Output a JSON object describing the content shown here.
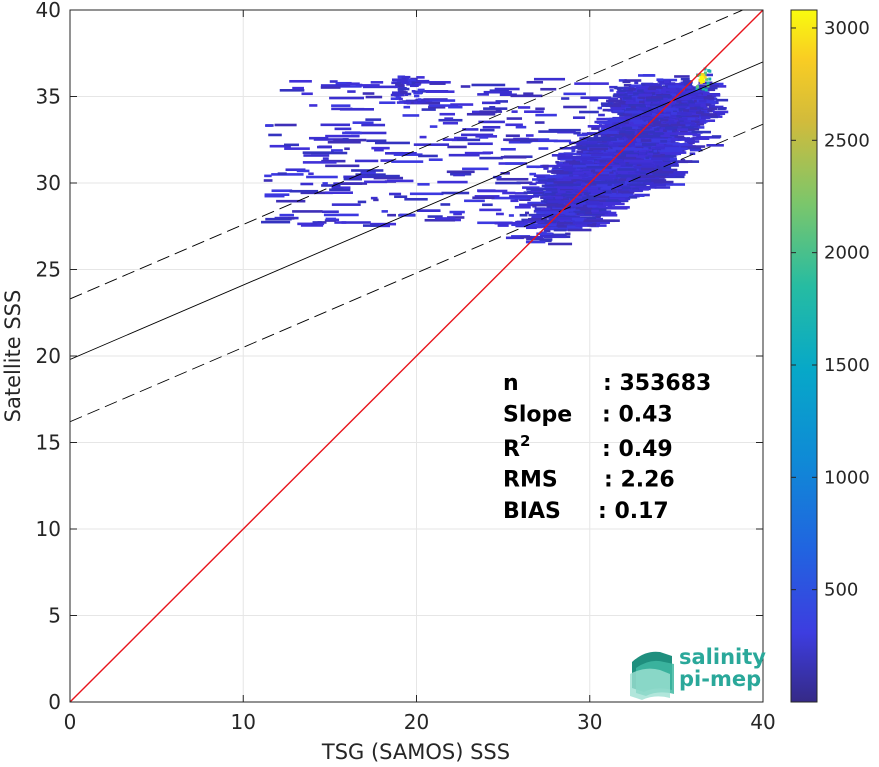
{
  "chart_data": {
    "type": "heatmap",
    "xlabel": "TSG (SAMOS) SSS",
    "ylabel": "Satellite SSS",
    "xlim": [
      0,
      40
    ],
    "ylim": [
      0,
      40
    ],
    "xticks": [
      0,
      10,
      20,
      30,
      40
    ],
    "yticks": [
      0,
      5,
      10,
      15,
      20,
      25,
      30,
      35,
      40
    ],
    "grid": true,
    "colorbar": {
      "range": [
        0,
        3080
      ],
      "ticks": [
        500,
        1000,
        1500,
        2000,
        2500,
        3000
      ],
      "colormap": "parula"
    },
    "density_region": {
      "x_range": [
        11,
        40
      ],
      "y_range": [
        25.5,
        36.8
      ],
      "peak": {
        "x": 36.4,
        "y": 36.0,
        "count": 3080
      }
    },
    "lines": {
      "identity": {
        "slope": 1,
        "intercept": 0,
        "color": "#e8141c"
      },
      "fit": {
        "slope": 0.43,
        "intercept": 19.8,
        "color": "#000000"
      },
      "fit_upper": {
        "slope": 0.43,
        "intercept": 23.3,
        "color": "#000000",
        "dashed": true
      },
      "fit_lower": {
        "slope": 0.43,
        "intercept": 16.2,
        "color": "#000000",
        "dashed": true
      }
    },
    "stats": [
      {
        "label": "n",
        "value": ": 353683"
      },
      {
        "label": "Slope",
        "value": ": 0.43"
      },
      {
        "label": "R",
        "sup": "2",
        "value": ": 0.49"
      },
      {
        "label": "RMS",
        "value": ": 2.26"
      },
      {
        "label": "BIAS",
        "value": ": 0.17"
      }
    ]
  },
  "logo": {
    "line1": "salinity",
    "line2": "pi-mep",
    "color": "#2aa89a"
  }
}
